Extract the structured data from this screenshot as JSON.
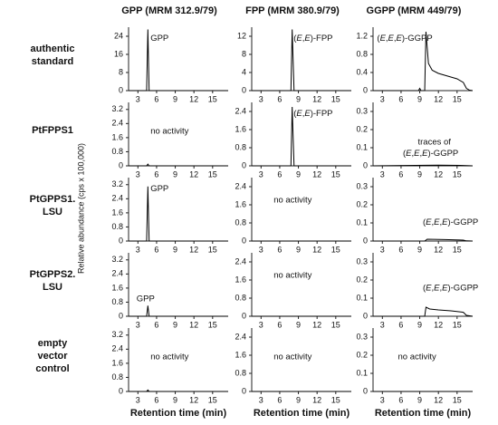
{
  "figure": {
    "column_titles": [
      "GPP (MRM 312.9/79)",
      "FPP (MRM 380.9/79)",
      "GGPP (MRM 449/79)"
    ],
    "row_labels": [
      [
        "authentic",
        "standard"
      ],
      [
        "PtFPPS1"
      ],
      [
        "PtGPPS1.",
        "LSU"
      ],
      [
        "PtGPPS2.",
        "LSU"
      ],
      [
        "empty",
        "vector",
        "control"
      ]
    ],
    "y_label": "Relative abundance (cps x 100,000)",
    "x_label": "Retention time (min)"
  },
  "chart_data": [
    {
      "type": "line",
      "xlim": [
        1.5,
        17.5
      ],
      "xticks": [
        3,
        6,
        9,
        12,
        15
      ],
      "ylim": [
        0,
        28
      ],
      "yticks": [
        0,
        8,
        16,
        24
      ],
      "series": [
        {
          "color": "#000000",
          "x": [
            1.5,
            4.4,
            4.6,
            4.8,
            17.5
          ],
          "values": [
            0,
            0,
            27,
            0,
            0
          ]
        }
      ],
      "annotations": [
        "GPP"
      ]
    },
    {
      "type": "line",
      "xlim": [
        1.5,
        17.5
      ],
      "xticks": [
        3,
        6,
        9,
        12,
        15
      ],
      "ylim": [
        0,
        14
      ],
      "yticks": [
        0,
        4,
        8,
        12
      ],
      "series": [
        {
          "color": "#000000",
          "x": [
            1.5,
            7.8,
            8.0,
            8.3,
            17.5
          ],
          "values": [
            0,
            0,
            13.5,
            0,
            0
          ]
        }
      ],
      "annotations": [
        "(E,E)-FPP"
      ]
    },
    {
      "type": "line",
      "xlim": [
        1.5,
        17.5
      ],
      "xticks": [
        3,
        6,
        9,
        12,
        15
      ],
      "ylim": [
        0,
        1.4
      ],
      "yticks": [
        0,
        0.4,
        0.8,
        1.2
      ],
      "series": [
        {
          "color": "#000000",
          "x": [
            1.5,
            8.8,
            9.0,
            9.2,
            9.8,
            10.0,
            10.4,
            11.0,
            12.0,
            13.5,
            15.0,
            16.0,
            16.5,
            17.0,
            17.5
          ],
          "values": [
            0,
            0,
            0.05,
            0,
            0,
            1.3,
            0.6,
            0.45,
            0.38,
            0.32,
            0.26,
            0.18,
            0.05,
            0.01,
            0
          ]
        }
      ],
      "annotations": [
        "(E,E,E)-GGPP"
      ]
    },
    {
      "type": "line",
      "xlim": [
        1.5,
        17.5
      ],
      "xticks": [
        3,
        6,
        9,
        12,
        15
      ],
      "ylim": [
        0,
        3.6
      ],
      "yticks": [
        0,
        0.8,
        1.6,
        2.4,
        3.2
      ],
      "series": [
        {
          "color": "#000000",
          "x": [
            1.5,
            4.4,
            4.6,
            4.8,
            17.5
          ],
          "values": [
            0,
            0,
            0.1,
            0,
            0
          ]
        }
      ],
      "annotations": [
        "no activity"
      ]
    },
    {
      "type": "line",
      "xlim": [
        1.5,
        17.5
      ],
      "xticks": [
        3,
        6,
        9,
        12,
        15
      ],
      "ylim": [
        0,
        2.8
      ],
      "yticks": [
        0,
        0.8,
        1.6,
        2.4
      ],
      "series": [
        {
          "color": "#000000",
          "x": [
            1.5,
            7.8,
            8.0,
            8.3,
            17.5
          ],
          "values": [
            0,
            0,
            2.6,
            0,
            0
          ]
        }
      ],
      "annotations": [
        "(E,E)-FPP"
      ]
    },
    {
      "type": "line",
      "xlim": [
        1.5,
        17.5
      ],
      "xticks": [
        3,
        6,
        9,
        12,
        15
      ],
      "ylim": [
        0,
        0.35
      ],
      "yticks": [
        0,
        0.1,
        0.2,
        0.3
      ],
      "series": [
        {
          "color": "#000000",
          "x": [
            1.5,
            10.0,
            12.0,
            16.0,
            17.5
          ],
          "values": [
            0,
            0.003,
            0.004,
            0.002,
            0
          ]
        }
      ],
      "annotations": [
        "traces of",
        "(E,E,E)-GGPP"
      ]
    },
    {
      "type": "line",
      "xlim": [
        1.5,
        17.5
      ],
      "xticks": [
        3,
        6,
        9,
        12,
        15
      ],
      "ylim": [
        0,
        3.6
      ],
      "yticks": [
        0,
        0.8,
        1.6,
        2.4,
        3.2
      ],
      "series": [
        {
          "color": "#000000",
          "x": [
            1.5,
            4.4,
            4.6,
            4.8,
            17.5
          ],
          "values": [
            0,
            0,
            3.1,
            0,
            0
          ]
        }
      ],
      "annotations": [
        "GPP"
      ]
    },
    {
      "type": "line",
      "xlim": [
        1.5,
        17.5
      ],
      "xticks": [
        3,
        6,
        9,
        12,
        15
      ],
      "ylim": [
        0,
        2.8
      ],
      "yticks": [
        0,
        0.8,
        1.6,
        2.4
      ],
      "series": [
        {
          "color": "#000000",
          "x": [
            1.5,
            17.5
          ],
          "values": [
            0,
            0
          ]
        }
      ],
      "annotations": [
        "no activity"
      ]
    },
    {
      "type": "line",
      "xlim": [
        1.5,
        17.5
      ],
      "xticks": [
        3,
        6,
        9,
        12,
        15
      ],
      "ylim": [
        0,
        0.35
      ],
      "yticks": [
        0,
        0.1,
        0.2,
        0.3
      ],
      "series": [
        {
          "color": "#000000",
          "x": [
            1.5,
            9.8,
            10.2,
            13.0,
            16.0,
            16.5,
            17.5
          ],
          "values": [
            0,
            0,
            0.01,
            0.008,
            0.005,
            0.001,
            0
          ]
        }
      ],
      "annotations": [
        "(E,E,E)-GGPP"
      ]
    },
    {
      "type": "line",
      "xlim": [
        1.5,
        17.5
      ],
      "xticks": [
        3,
        6,
        9,
        12,
        15
      ],
      "ylim": [
        0,
        3.6
      ],
      "yticks": [
        0,
        0.8,
        1.6,
        2.4,
        3.2
      ],
      "series": [
        {
          "color": "#000000",
          "x": [
            1.5,
            4.4,
            4.6,
            4.8,
            17.5
          ],
          "values": [
            0,
            0,
            0.6,
            0,
            0
          ]
        }
      ],
      "annotations": [
        "GPP"
      ]
    },
    {
      "type": "line",
      "xlim": [
        1.5,
        17.5
      ],
      "xticks": [
        3,
        6,
        9,
        12,
        15
      ],
      "ylim": [
        0,
        2.8
      ],
      "yticks": [
        0,
        0.8,
        1.6,
        2.4
      ],
      "series": [
        {
          "color": "#000000",
          "x": [
            1.5,
            17.5
          ],
          "values": [
            0,
            0
          ]
        }
      ],
      "annotations": [
        "no activity"
      ]
    },
    {
      "type": "line",
      "xlim": [
        1.5,
        17.5
      ],
      "xticks": [
        3,
        6,
        9,
        12,
        15
      ],
      "ylim": [
        0,
        0.35
      ],
      "yticks": [
        0,
        0.1,
        0.2,
        0.3
      ],
      "series": [
        {
          "color": "#000000",
          "x": [
            1.5,
            9.8,
            10.0,
            10.6,
            12.0,
            14.0,
            16.0,
            16.5,
            17.5
          ],
          "values": [
            0,
            0,
            0.05,
            0.04,
            0.035,
            0.03,
            0.022,
            0.005,
            0
          ]
        }
      ],
      "annotations": [
        "(E,E,E)-GGPP"
      ]
    },
    {
      "type": "line",
      "xlim": [
        1.5,
        17.5
      ],
      "xticks": [
        3,
        6,
        9,
        12,
        15
      ],
      "ylim": [
        0,
        3.6
      ],
      "yticks": [
        0,
        0.8,
        1.6,
        2.4,
        3.2
      ],
      "series": [
        {
          "color": "#000000",
          "x": [
            1.5,
            4.4,
            4.6,
            4.8,
            17.5
          ],
          "values": [
            0,
            0,
            0.08,
            0,
            0
          ]
        }
      ],
      "annotations": [
        "no activity"
      ]
    },
    {
      "type": "line",
      "xlim": [
        1.5,
        17.5
      ],
      "xticks": [
        3,
        6,
        9,
        12,
        15
      ],
      "ylim": [
        0,
        2.8
      ],
      "yticks": [
        0,
        0.8,
        1.6,
        2.4
      ],
      "series": [
        {
          "color": "#000000",
          "x": [
            1.5,
            17.5
          ],
          "values": [
            0,
            0
          ]
        }
      ],
      "annotations": [
        "no activity"
      ]
    },
    {
      "type": "line",
      "xlim": [
        1.5,
        17.5
      ],
      "xticks": [
        3,
        6,
        9,
        12,
        15
      ],
      "ylim": [
        0,
        0.35
      ],
      "yticks": [
        0,
        0.1,
        0.2,
        0.3
      ],
      "series": [
        {
          "color": "#000000",
          "x": [
            1.5,
            17.5
          ],
          "values": [
            0,
            0
          ]
        }
      ],
      "annotations": [
        "no activity"
      ]
    }
  ]
}
